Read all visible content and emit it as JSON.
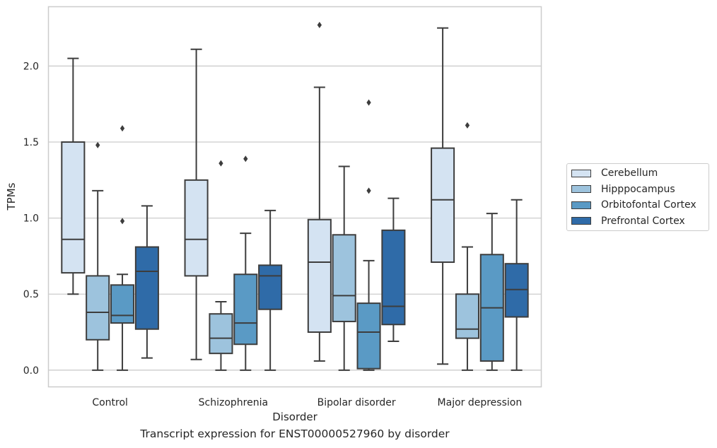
{
  "chart_data": {
    "type": "box",
    "xlabel": "Disorder",
    "ylabel": "TPMs",
    "caption": "Transcript expression for ENST00000527960 by disorder",
    "categories": [
      "Control",
      "Schizophrenia",
      "Bipolar disorder",
      "Major depression"
    ],
    "ylim": [
      -0.11,
      2.39
    ],
    "yticks": [
      0.0,
      0.5,
      1.0,
      1.5,
      2.0
    ],
    "ytick_labels": [
      "0.0",
      "0.5",
      "1.0",
      "1.5",
      "2.0"
    ],
    "grid": "horizontal",
    "legend_position": "right",
    "series": [
      {
        "name": "Cerebellum",
        "color": "#d4e3f2",
        "boxes": [
          {
            "category": "Control",
            "whislo": 0.5,
            "q1": 0.64,
            "med": 0.86,
            "q3": 1.5,
            "whishi": 2.05,
            "fliers": []
          },
          {
            "category": "Schizophrenia",
            "whislo": 0.07,
            "q1": 0.62,
            "med": 0.86,
            "q3": 1.25,
            "whishi": 2.11,
            "fliers": []
          },
          {
            "category": "Bipolar disorder",
            "whislo": 0.06,
            "q1": 0.25,
            "med": 0.71,
            "q3": 0.99,
            "whishi": 1.86,
            "fliers": [
              2.27
            ]
          },
          {
            "category": "Major depression",
            "whislo": 0.04,
            "q1": 0.71,
            "med": 1.12,
            "q3": 1.46,
            "whishi": 2.25,
            "fliers": []
          }
        ]
      },
      {
        "name": "Hipppocampus",
        "color": "#9dc3dd",
        "boxes": [
          {
            "category": "Control",
            "whislo": 0.0,
            "q1": 0.2,
            "med": 0.38,
            "q3": 0.62,
            "whishi": 1.18,
            "fliers": [
              1.48
            ]
          },
          {
            "category": "Schizophrenia",
            "whislo": 0.0,
            "q1": 0.11,
            "med": 0.21,
            "q3": 0.37,
            "whishi": 0.45,
            "fliers": [
              1.36
            ]
          },
          {
            "category": "Bipolar disorder",
            "whislo": 0.0,
            "q1": 0.32,
            "med": 0.49,
            "q3": 0.89,
            "whishi": 1.34,
            "fliers": []
          },
          {
            "category": "Major depression",
            "whislo": 0.0,
            "q1": 0.21,
            "med": 0.27,
            "q3": 0.5,
            "whishi": 0.81,
            "fliers": [
              1.61
            ]
          }
        ]
      },
      {
        "name": "Orbitofontal Cortex",
        "color": "#5a9ac5",
        "boxes": [
          {
            "category": "Control",
            "whislo": 0.0,
            "q1": 0.31,
            "med": 0.36,
            "q3": 0.56,
            "whishi": 0.63,
            "fliers": [
              0.98,
              1.59
            ]
          },
          {
            "category": "Schizophrenia",
            "whislo": 0.0,
            "q1": 0.17,
            "med": 0.31,
            "q3": 0.63,
            "whishi": 0.9,
            "fliers": [
              1.39
            ]
          },
          {
            "category": "Bipolar disorder",
            "whislo": 0.0,
            "q1": 0.01,
            "med": 0.25,
            "q3": 0.44,
            "whishi": 0.72,
            "fliers": [
              1.18,
              1.76
            ]
          },
          {
            "category": "Major depression",
            "whislo": 0.0,
            "q1": 0.06,
            "med": 0.41,
            "q3": 0.76,
            "whishi": 1.03,
            "fliers": []
          }
        ]
      },
      {
        "name": "Prefrontal Cortex",
        "color": "#2f6ba8",
        "boxes": [
          {
            "category": "Control",
            "whislo": 0.08,
            "q1": 0.27,
            "med": 0.65,
            "q3": 0.81,
            "whishi": 1.08,
            "fliers": []
          },
          {
            "category": "Schizophrenia",
            "whislo": 0.0,
            "q1": 0.4,
            "med": 0.62,
            "q3": 0.69,
            "whishi": 1.05,
            "fliers": []
          },
          {
            "category": "Bipolar disorder",
            "whislo": 0.19,
            "q1": 0.3,
            "med": 0.42,
            "q3": 0.92,
            "whishi": 1.13,
            "fliers": []
          },
          {
            "category": "Major depression",
            "whislo": 0.0,
            "q1": 0.35,
            "med": 0.53,
            "q3": 0.7,
            "whishi": 1.12,
            "fliers": []
          }
        ]
      }
    ]
  }
}
